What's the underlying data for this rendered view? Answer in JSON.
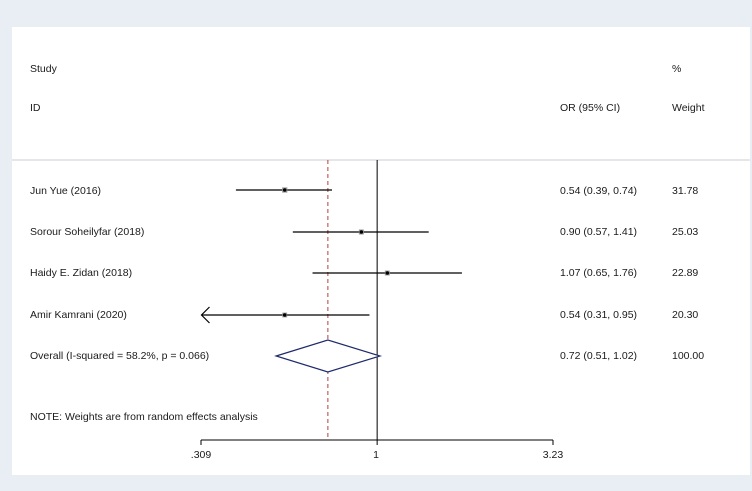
{
  "chart_data": {
    "type": "forest",
    "headers": {
      "study_line1": "Study",
      "study_line2": "ID",
      "or": "OR (95% CI)",
      "weight_line1": "%",
      "weight_line2": "Weight"
    },
    "studies": [
      {
        "label": "Jun Yue (2016)",
        "or": 0.54,
        "lower": 0.39,
        "upper": 0.74,
        "ci_text": "0.54 (0.39, 0.74)",
        "weight": "31.78",
        "arrow_left": false
      },
      {
        "label": "Sorour Soheilyfar (2018)",
        "or": 0.9,
        "lower": 0.57,
        "upper": 1.41,
        "ci_text": "0.90 (0.57, 1.41)",
        "weight": "25.03",
        "arrow_left": false
      },
      {
        "label": "Haidy E. Zidan (2018)",
        "or": 1.07,
        "lower": 0.65,
        "upper": 1.76,
        "ci_text": "1.07 (0.65, 1.76)",
        "weight": "22.89",
        "arrow_left": false
      },
      {
        "label": "Amir Kamrani (2020)",
        "or": 0.54,
        "lower": 0.31,
        "upper": 0.95,
        "ci_text": "0.54 (0.31, 0.95)",
        "weight": "20.30",
        "arrow_left": true
      }
    ],
    "overall": {
      "label": "Overall  (I-squared = 58.2%, p = 0.066)",
      "or": 0.72,
      "lower": 0.51,
      "upper": 1.02,
      "ci_text": "0.72 (0.51, 1.02)",
      "weight": "100.00"
    },
    "note": "NOTE: Weights are from random effects analysis",
    "x_scale": "log",
    "xlim": [
      0.309,
      3.23
    ],
    "x_ticks": [
      {
        "value": 0.309,
        "label": ".309"
      },
      {
        "value": 1,
        "label": "1"
      },
      {
        "value": 3.23,
        "label": "3.23"
      }
    ],
    "null_line": 1,
    "overall_line_color": "#b0413e",
    "line_color": "#000000",
    "diamond_color": "#1f2a6b"
  }
}
